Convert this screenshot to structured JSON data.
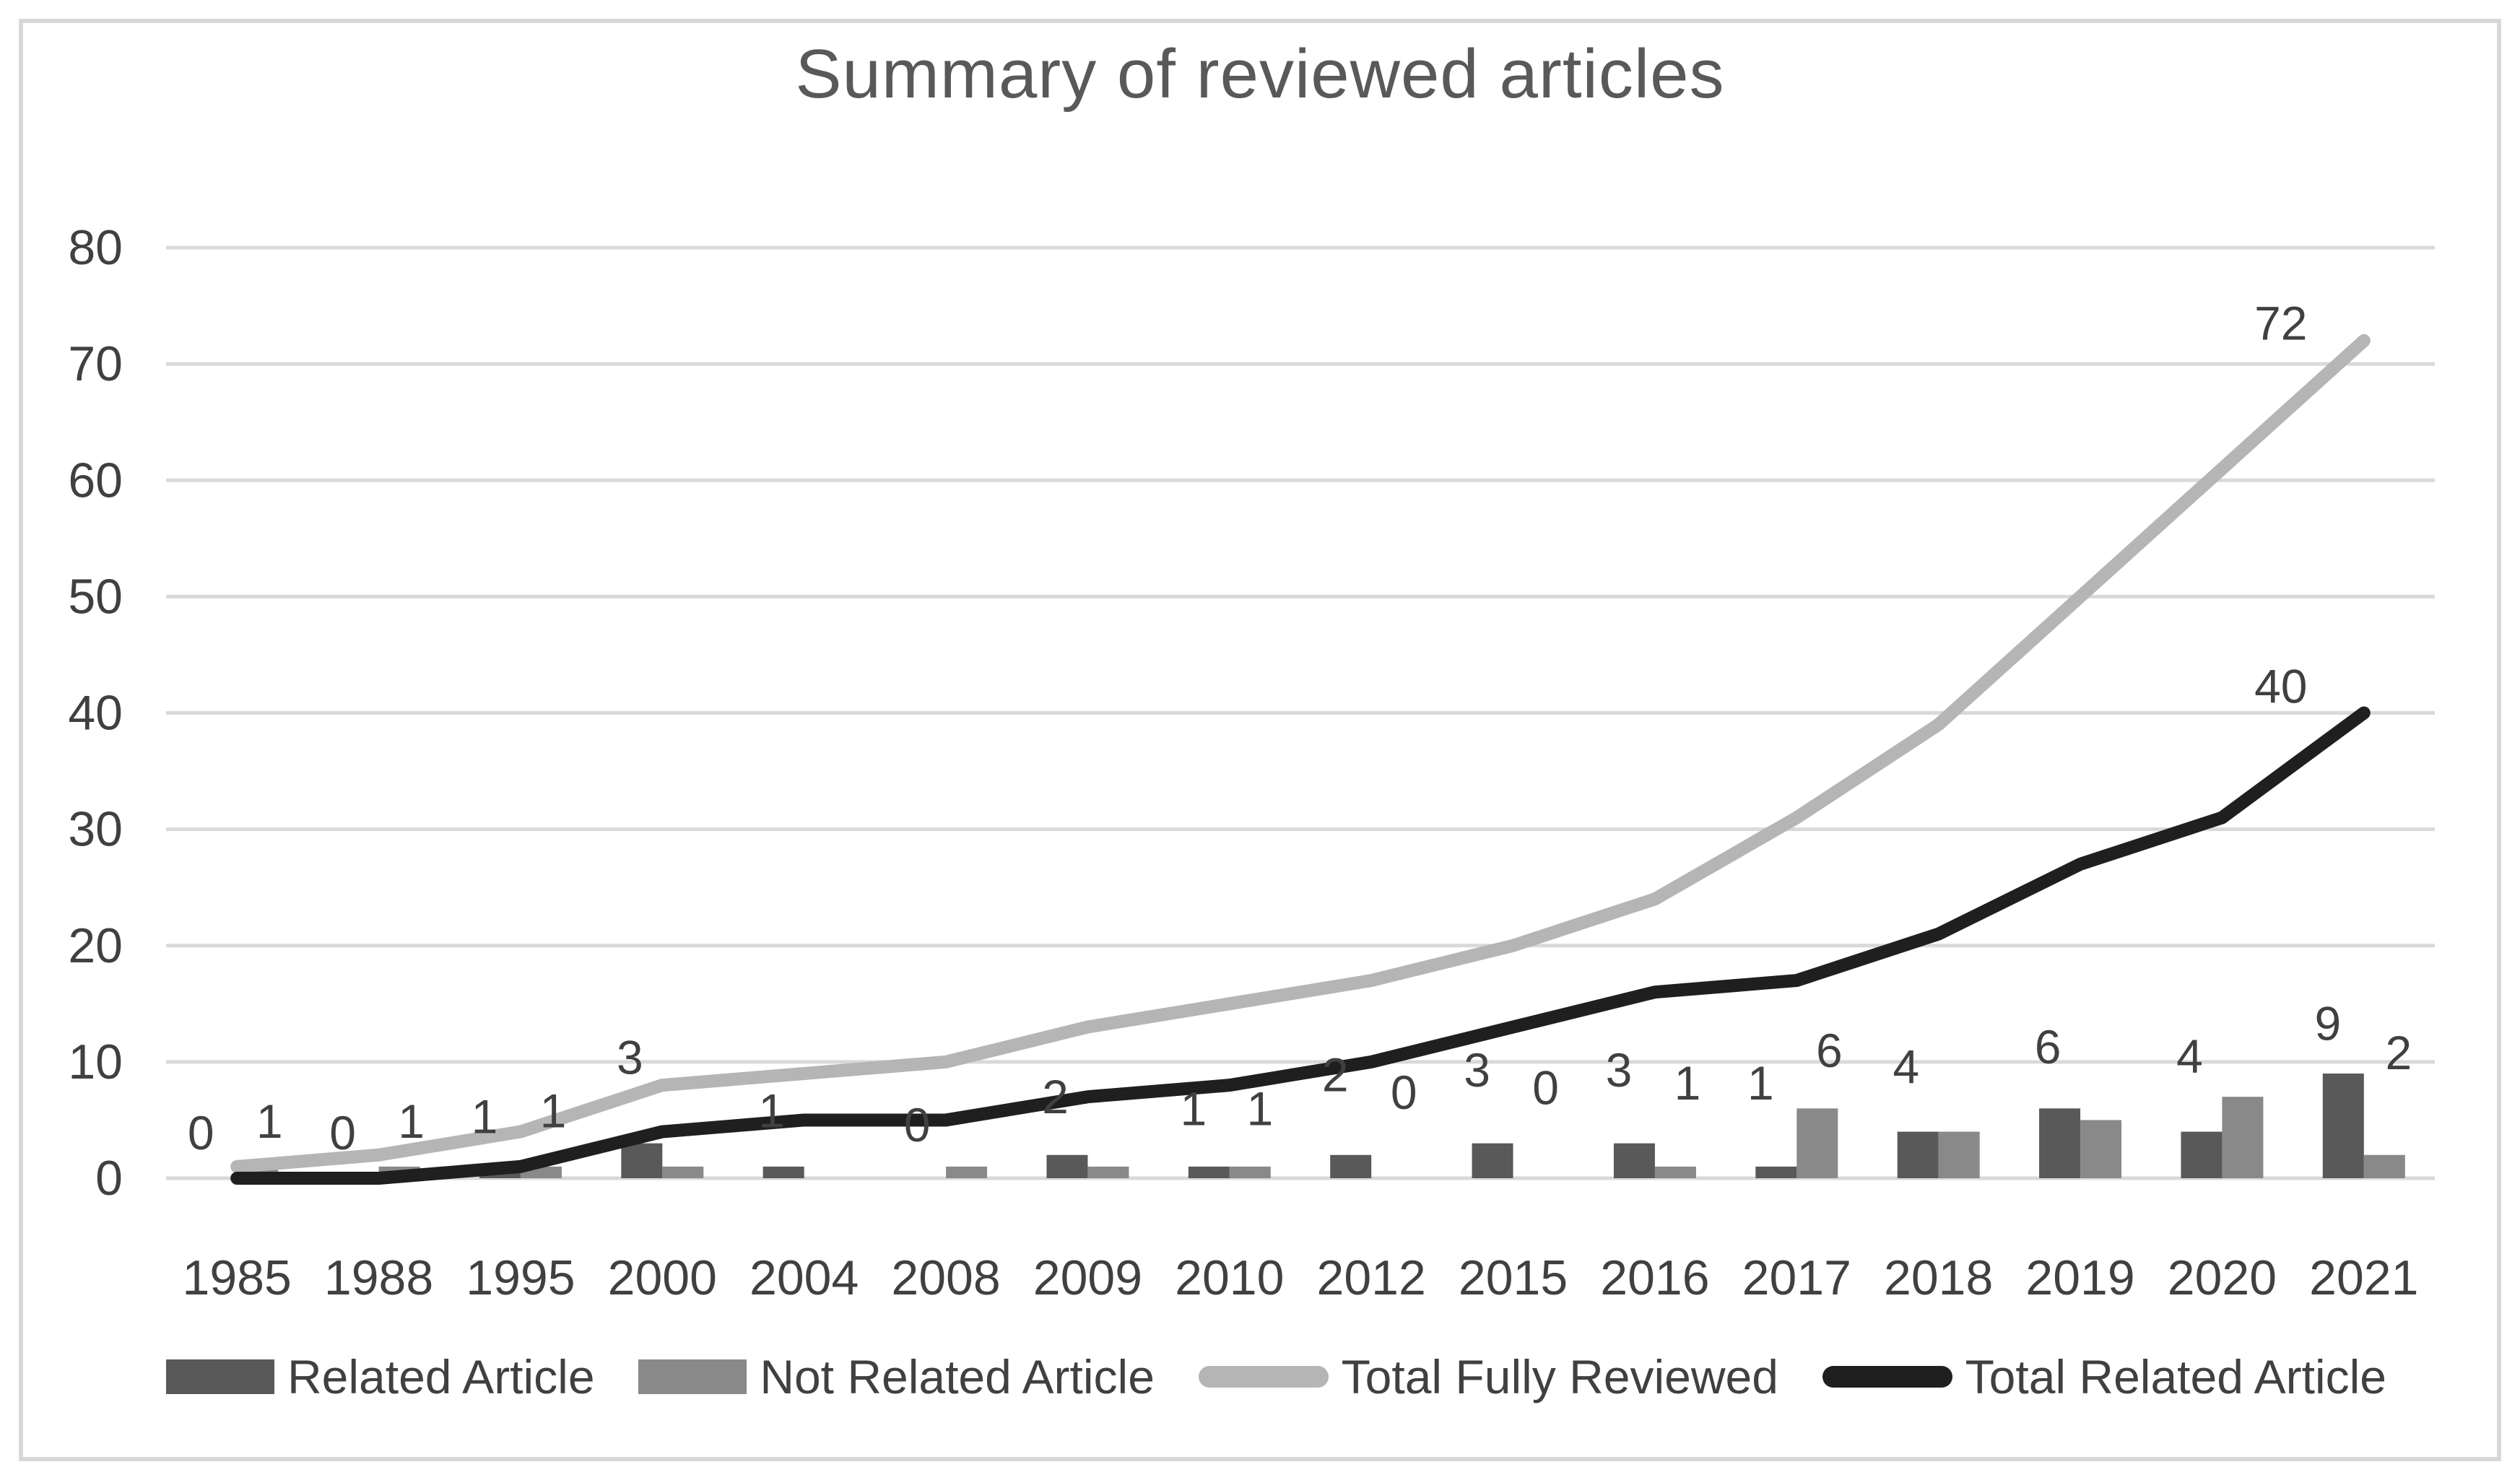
{
  "figure": {
    "background": "#ffffff",
    "border_color": "#d8d8d8"
  },
  "chart_data": {
    "type": "combo-bar-line",
    "title": "Summary of reviewed articles",
    "categories": [
      "1985",
      "1988",
      "1995",
      "2000",
      "2004",
      "2008",
      "2009",
      "2010",
      "2012",
      "2015",
      "2016",
      "2017",
      "2018",
      "2019",
      "2020",
      "2021"
    ],
    "series": [
      {
        "name": "Related Article",
        "type": "bar",
        "color": "#595959",
        "values": [
          0,
          0,
          1,
          3,
          1,
          0,
          2,
          1,
          2,
          3,
          3,
          1,
          4,
          6,
          4,
          9
        ]
      },
      {
        "name": "Not Related Article",
        "type": "bar",
        "color": "#898989",
        "values": [
          1,
          1,
          1,
          1,
          0,
          1,
          1,
          1,
          0,
          0,
          1,
          6,
          4,
          5,
          7,
          2
        ]
      },
      {
        "name": "Total Fully Reviewed",
        "type": "line",
        "color": "#b5b5b5",
        "values": [
          1,
          2,
          4,
          8,
          9,
          10,
          13,
          15,
          17,
          20,
          24,
          31,
          39,
          50,
          61,
          72
        ]
      },
      {
        "name": "Total Related Article",
        "type": "line",
        "color": "#1f1f1f",
        "values": [
          0,
          0,
          1,
          4,
          5,
          5,
          7,
          8,
          10,
          13,
          16,
          17,
          21,
          27,
          31,
          40
        ]
      }
    ],
    "ylim": [
      0,
      80
    ],
    "yticks": [
      0,
      10,
      20,
      30,
      40,
      50,
      60,
      70,
      80
    ],
    "grid": "horizontal",
    "gridline_color": "#d9d9d9",
    "legend_position": "bottom",
    "axis_label_color": "#404040",
    "data_label_color": "#404040",
    "title_color": "#595959",
    "visible_data_labels": [
      {
        "year": "1985",
        "text": "0",
        "dx": -50,
        "label_y": 3.9
      },
      {
        "year": "1985",
        "text": "1",
        "dx": 45,
        "label_y": 4.9
      },
      {
        "year": "1988",
        "text": "0",
        "dx": -50,
        "label_y": 3.9
      },
      {
        "year": "1988",
        "text": "1",
        "dx": 45,
        "label_y": 4.9
      },
      {
        "year": "1995",
        "text": "1",
        "dx": -50,
        "label_y": 5.3
      },
      {
        "year": "1995",
        "text": "1",
        "dx": 45,
        "label_y": 5.8
      },
      {
        "year": "2000",
        "text": "3",
        "dx": -45,
        "label_y": 10.4
      },
      {
        "year": "2004",
        "text": "1",
        "dx": -45,
        "label_y": 5.8
      },
      {
        "year": "2008",
        "text": "0",
        "dx": -40,
        "label_y": 4.6
      },
      {
        "year": "2009",
        "text": "2",
        "dx": -45,
        "label_y": 7.0
      },
      {
        "year": "2010",
        "text": "1",
        "dx": -50,
        "label_y": 6.0
      },
      {
        "year": "2010",
        "text": "1",
        "dx": 42,
        "label_y": 6.0
      },
      {
        "year": "2012",
        "text": "2",
        "dx": -50,
        "label_y": 8.9
      },
      {
        "year": "2012",
        "text": "0",
        "dx": 45,
        "label_y": 7.4
      },
      {
        "year": "2015",
        "text": "3",
        "dx": -50,
        "label_y": 9.3
      },
      {
        "year": "2015",
        "text": "0",
        "dx": 45,
        "label_y": 7.8
      },
      {
        "year": "2016",
        "text": "3",
        "dx": -50,
        "label_y": 9.3
      },
      {
        "year": "2016",
        "text": "1",
        "dx": 45,
        "label_y": 8.2
      },
      {
        "year": "2017",
        "text": "1",
        "dx": -50,
        "label_y": 8.2
      },
      {
        "year": "2017",
        "text": "6",
        "dx": 45,
        "label_y": 11.0
      },
      {
        "year": "2018",
        "text": "4",
        "dx": -45,
        "label_y": 9.6
      },
      {
        "year": "2019",
        "text": "6",
        "dx": -45,
        "label_y": 11.3
      },
      {
        "year": "2020",
        "text": "4",
        "dx": -45,
        "label_y": 10.5
      },
      {
        "year": "2021",
        "text": "9",
        "dx": -50,
        "label_y": 13.3
      },
      {
        "year": "2021",
        "text": "2",
        "dx": 48,
        "label_y": 10.8
      }
    ],
    "line_end_labels": [
      {
        "year": "2021",
        "text": "72",
        "dx": -115,
        "label_y": 73.5
      },
      {
        "year": "2021",
        "text": "40",
        "dx": -115,
        "label_y": 42.3
      }
    ]
  }
}
